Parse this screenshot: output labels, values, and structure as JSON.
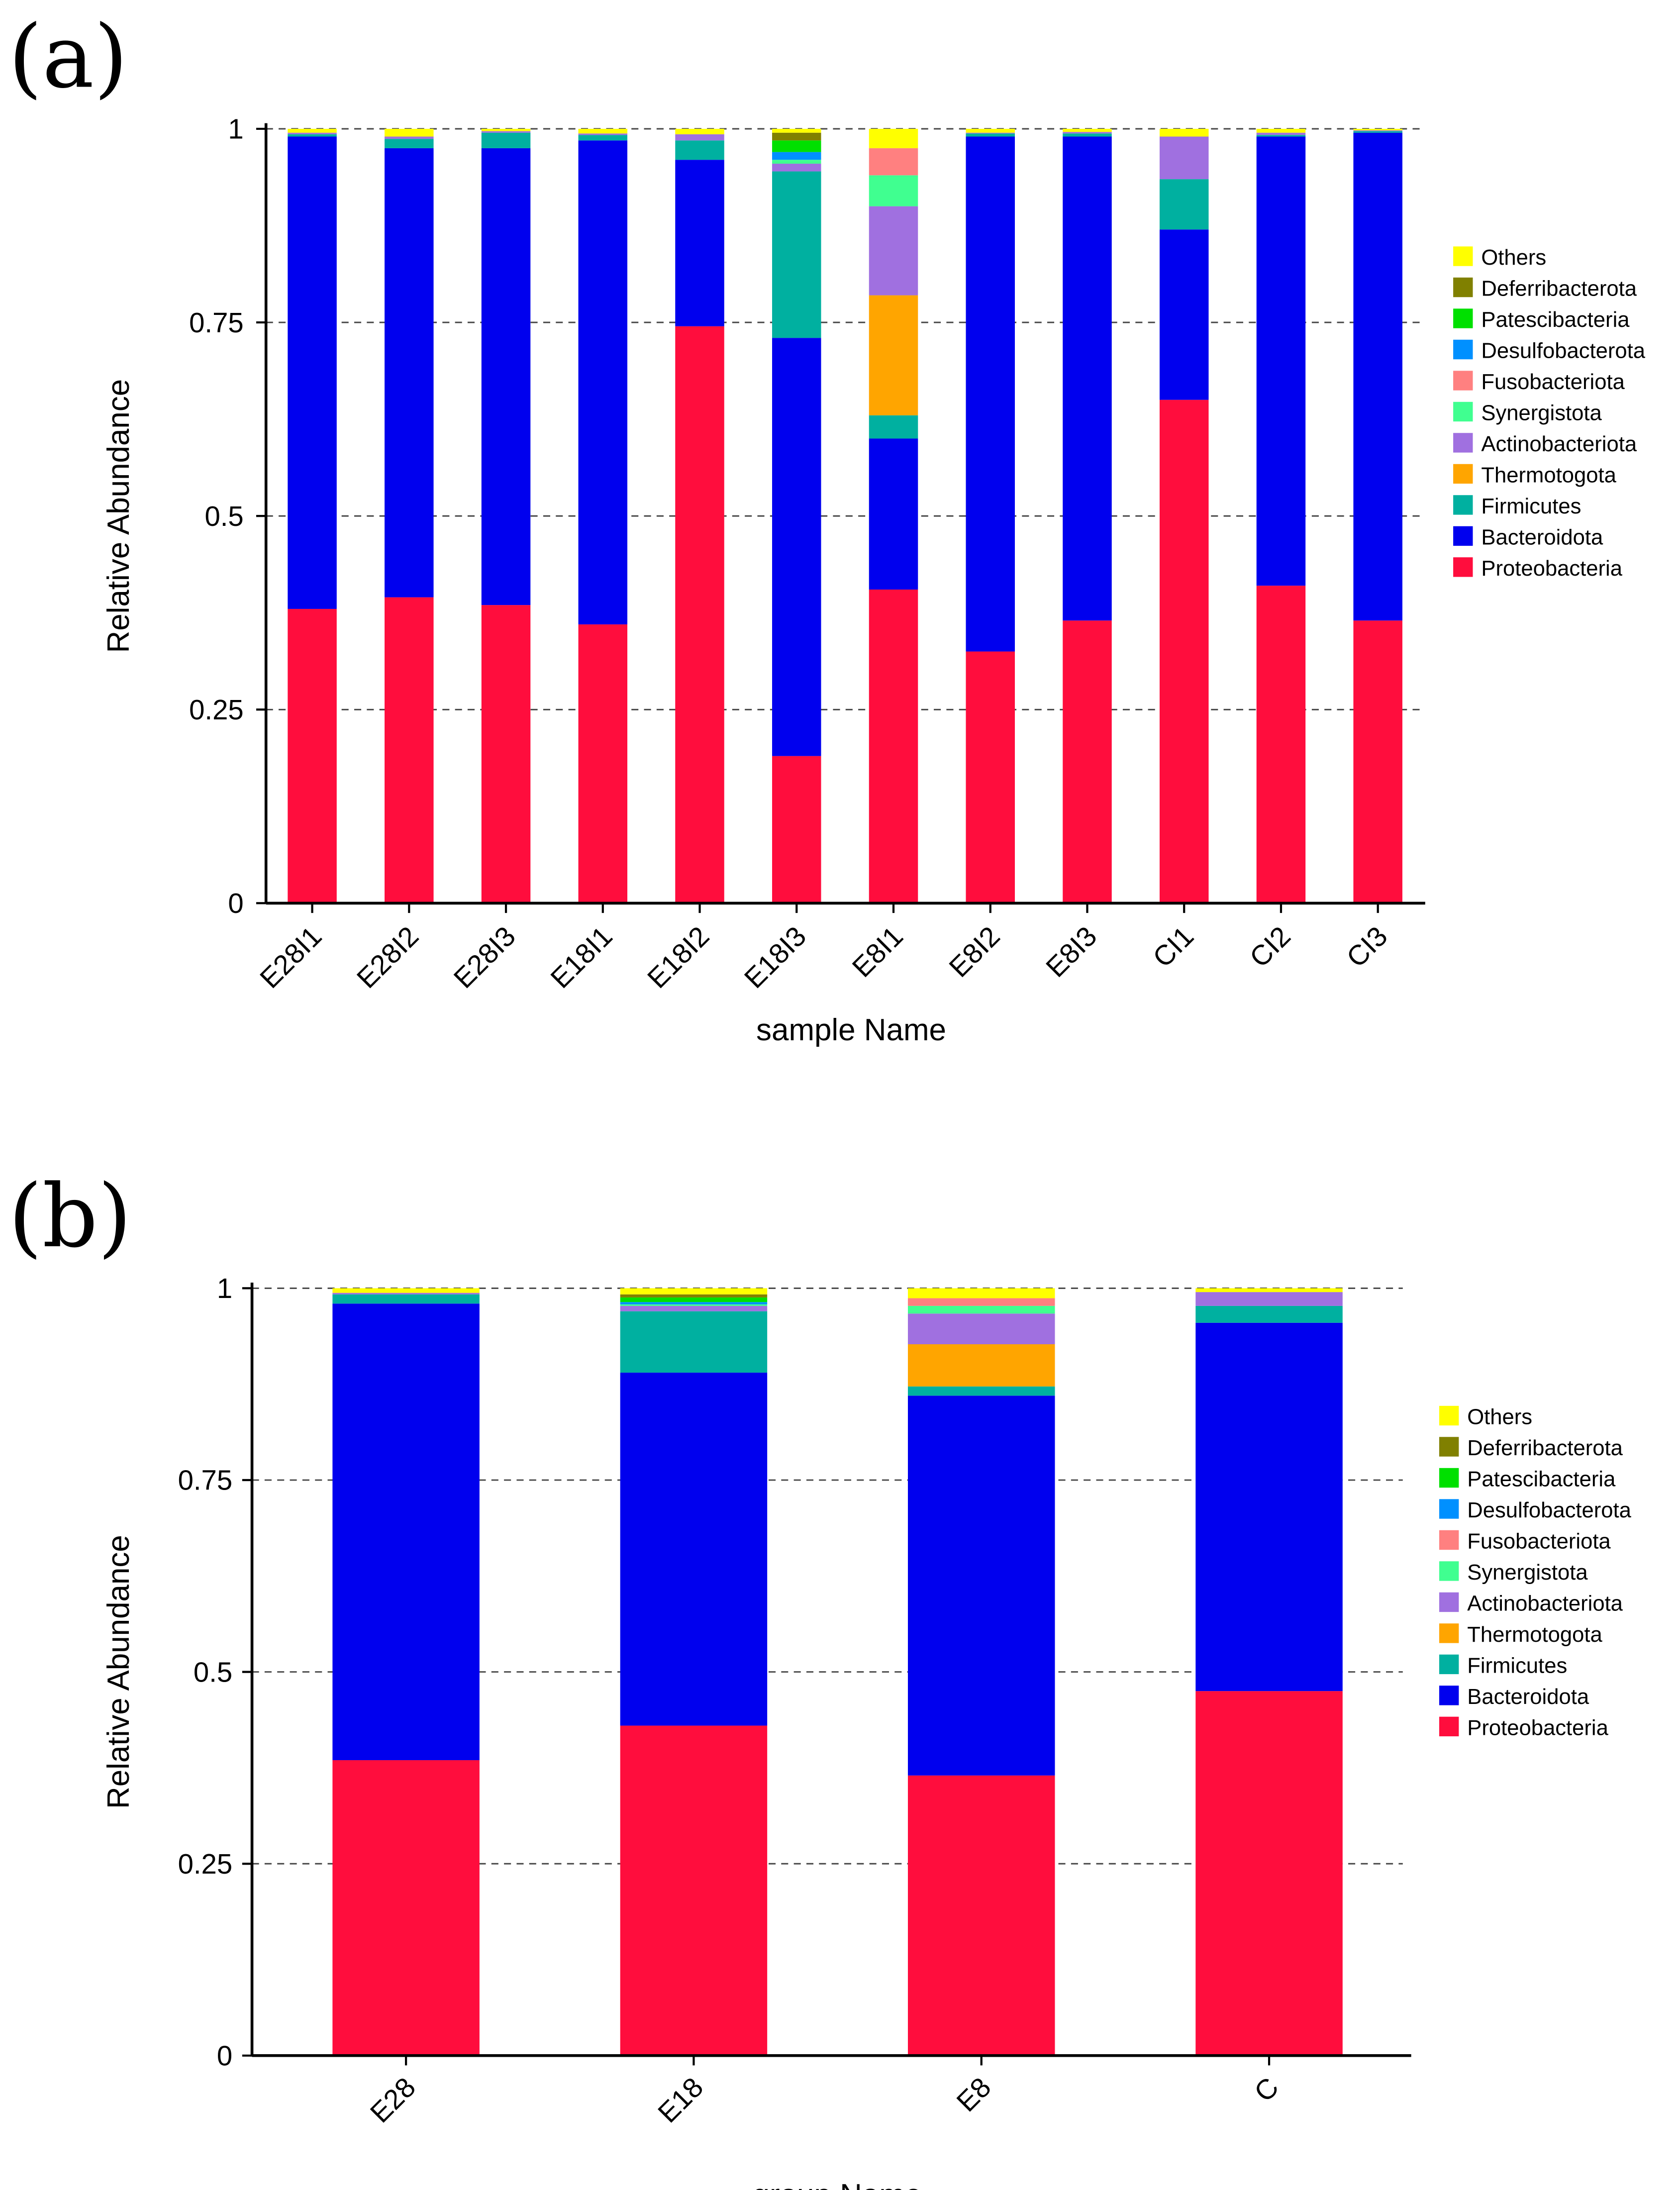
{
  "colors": {
    "Others": "#ffff00",
    "Deferribacterota": "#808000",
    "Patescibacteria": "#00e000",
    "Desulfobacterota": "#0090ff",
    "Fusobacteriota": "#ff8080",
    "Synergistota": "#40ff90",
    "Actinobacteriota": "#a070e0",
    "Thermotogota": "#ffa500",
    "Firmicutes": "#00b0a0",
    "Bacteroidota": "#0000ee",
    "Proteobacteria": "#ff0d3d"
  },
  "chart_data": [
    {
      "panel_label": "(a)",
      "type": "bar",
      "stacked": true,
      "xlabel": "sample Name",
      "ylabel": "Relative Abundance",
      "ylim": [
        0,
        1
      ],
      "yticks": [
        0,
        0.25,
        0.5,
        0.75,
        1
      ],
      "ytick_labels": [
        "0",
        "0.25",
        "0.5",
        "0.75",
        "1"
      ],
      "grid": "dashed horizontal",
      "legend": "right",
      "legend_entries": [
        "Others",
        "Deferribacterota",
        "Patescibacteria",
        "Desulfobacterota",
        "Fusobacteriota",
        "Synergistota",
        "Actinobacteriota",
        "Thermotogota",
        "Firmicutes",
        "Bacteroidota",
        "Proteobacteria"
      ],
      "categories": [
        "E28I1",
        "E28I2",
        "E28I3",
        "E18I1",
        "E18I2",
        "E18I3",
        "E8I1",
        "E8I2",
        "E8I3",
        "CI1",
        "CI2",
        "CI3"
      ],
      "series": [
        {
          "name": "Proteobacteria",
          "values": [
            0.38,
            0.395,
            0.385,
            0.36,
            0.745,
            0.19,
            0.405,
            0.325,
            0.365,
            0.65,
            0.41,
            0.365
          ]
        },
        {
          "name": "Bacteroidota",
          "values": [
            0.61,
            0.58,
            0.59,
            0.625,
            0.215,
            0.54,
            0.195,
            0.665,
            0.625,
            0.22,
            0.58,
            0.63
          ]
        },
        {
          "name": "Firmicutes",
          "values": [
            0.003,
            0.012,
            0.02,
            0.007,
            0.025,
            0.215,
            0.03,
            0.004,
            0.004,
            0.065,
            0.002,
            0.002
          ]
        },
        {
          "name": "Thermotogota",
          "values": [
            0,
            0,
            0,
            0,
            0,
            0,
            0.155,
            0,
            0,
            0,
            0,
            0
          ]
        },
        {
          "name": "Actinobacteriota",
          "values": [
            0.002,
            0.003,
            0.002,
            0.002,
            0.008,
            0.01,
            0.115,
            0.001,
            0.002,
            0.055,
            0.003,
            0.001
          ]
        },
        {
          "name": "Synergistota",
          "values": [
            0,
            0,
            0,
            0,
            0,
            0.005,
            0.04,
            0,
            0,
            0,
            0,
            0
          ]
        },
        {
          "name": "Fusobacteriota",
          "values": [
            0,
            0,
            0,
            0,
            0,
            0,
            0.035,
            0,
            0,
            0,
            0,
            0
          ]
        },
        {
          "name": "Desulfobacterota",
          "values": [
            0,
            0,
            0,
            0,
            0,
            0.01,
            0,
            0,
            0,
            0,
            0,
            0
          ]
        },
        {
          "name": "Patescibacteria",
          "values": [
            0,
            0,
            0,
            0,
            0,
            0.015,
            0,
            0,
            0,
            0,
            0,
            0
          ]
        },
        {
          "name": "Deferribacterota",
          "values": [
            0,
            0,
            0,
            0,
            0,
            0.01,
            0,
            0,
            0,
            0,
            0,
            0
          ]
        },
        {
          "name": "Others",
          "values": [
            0.005,
            0.01,
            0.003,
            0.006,
            0.007,
            0.005,
            0.025,
            0.005,
            0.004,
            0.01,
            0.005,
            0.002
          ]
        }
      ]
    },
    {
      "panel_label": "(b)",
      "type": "bar",
      "stacked": true,
      "xlabel": "group Name",
      "ylabel": "Relative Abundance",
      "ylim": [
        0,
        1
      ],
      "yticks": [
        0,
        0.25,
        0.5,
        0.75,
        1
      ],
      "ytick_labels": [
        "0",
        "0.25",
        "0.5",
        "0.75",
        "1"
      ],
      "grid": "dashed horizontal",
      "legend": "right",
      "legend_entries": [
        "Others",
        "Deferribacterota",
        "Patescibacteria",
        "Desulfobacterota",
        "Fusobacteriota",
        "Synergistota",
        "Actinobacteriota",
        "Thermotogota",
        "Firmicutes",
        "Bacteroidota",
        "Proteobacteria"
      ],
      "categories": [
        "E28",
        "E18",
        "E8",
        "C"
      ],
      "series": [
        {
          "name": "Proteobacteria",
          "values": [
            0.385,
            0.43,
            0.365,
            0.475
          ]
        },
        {
          "name": "Bacteroidota",
          "values": [
            0.595,
            0.46,
            0.495,
            0.48
          ]
        },
        {
          "name": "Firmicutes",
          "values": [
            0.012,
            0.08,
            0.012,
            0.022
          ]
        },
        {
          "name": "Thermotogota",
          "values": [
            0,
            0,
            0.055,
            0
          ]
        },
        {
          "name": "Actinobacteriota",
          "values": [
            0.002,
            0.007,
            0.04,
            0.018
          ]
        },
        {
          "name": "Synergistota",
          "values": [
            0,
            0.002,
            0.01,
            0
          ]
        },
        {
          "name": "Fusobacteriota",
          "values": [
            0,
            0,
            0.01,
            0
          ]
        },
        {
          "name": "Desulfobacterota",
          "values": [
            0,
            0.003,
            0,
            0
          ]
        },
        {
          "name": "Patescibacteria",
          "values": [
            0,
            0.006,
            0,
            0
          ]
        },
        {
          "name": "Deferribacterota",
          "values": [
            0,
            0.004,
            0,
            0
          ]
        },
        {
          "name": "Others",
          "values": [
            0.006,
            0.008,
            0.013,
            0.005
          ]
        }
      ]
    }
  ]
}
